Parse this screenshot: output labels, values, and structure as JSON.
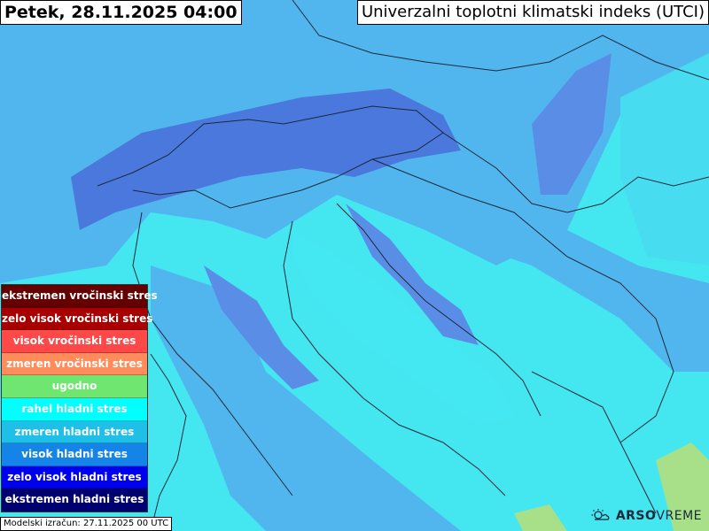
{
  "header": {
    "date_label": "Petek, 28.11.2025 04:00",
    "index_title": "Univerzalni toplotni klimatski indeks (UTCI)"
  },
  "legend": [
    {
      "label": "ekstremen vročinski stres",
      "color": "#640000"
    },
    {
      "label": "zelo visok vročinski stres",
      "color": "#a80000"
    },
    {
      "label": "visok vročinski stres",
      "color": "#ff4848"
    },
    {
      "label": "zmeren vročinski stres",
      "color": "#ff8c5a"
    },
    {
      "label": "ugodno",
      "color": "#6ee670"
    },
    {
      "label": "rahel hladni stres",
      "color": "#00ffff"
    },
    {
      "label": "zmeren hladni stres",
      "color": "#1ec0e8"
    },
    {
      "label": "visok hladni stres",
      "color": "#1484e8"
    },
    {
      "label": "zelo visok hladni stres",
      "color": "#0000f0"
    },
    {
      "label": "ekstremen hladni stres",
      "color": "#000070"
    }
  ],
  "footer": {
    "model_run": "Modelski izračun: 27.11.2025 00 UTC",
    "logo_bold": "ARSO",
    "logo_light": "VREME"
  },
  "map_colors": {
    "rahel": "#44e8f2",
    "zmeren": "#50b8f0",
    "visok": "#5a8ee6",
    "alps": "#4a78dc"
  }
}
